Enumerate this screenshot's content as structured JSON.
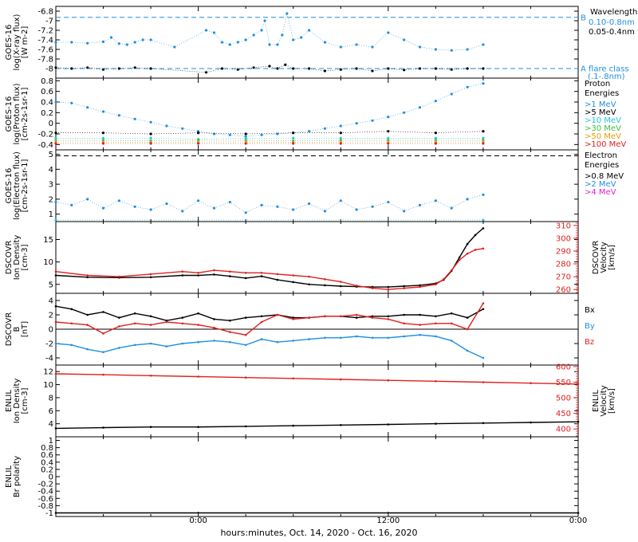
{
  "x_axis": {
    "title": "hours:minutes, Oct. 14, 2020 - Oct. 16, 2020",
    "ticks": [
      "0:00",
      "12:00",
      "0:00"
    ],
    "tick_hours": [
      0,
      12,
      24
    ],
    "range_hours": [
      -9,
      24
    ]
  },
  "chart_data": [
    {
      "type": "scatter",
      "id": "goes-xray",
      "ylabel": [
        "GOES-16",
        "log(X-ray flux)",
        "[W m-2]"
      ],
      "ylim": [
        -8.2,
        -6.7
      ],
      "yticks": [
        -6.8,
        -7.0,
        -7.2,
        -7.4,
        -7.6,
        -7.8,
        -8.0
      ],
      "ref_lines": [
        {
          "y": -6.93,
          "label": "B",
          "color": "#1f8fe0"
        },
        {
          "y": -8.0,
          "label": "A  flare class",
          "sublabel": "(.1-.8nm)",
          "color": "#1f8fe0"
        }
      ],
      "legend_title": "Wavelength",
      "legend": [
        {
          "label": "0.10-0.8nm",
          "color": "#1f8fe0"
        },
        {
          "label": "0.05-0.4nm",
          "color": "#000000"
        }
      ],
      "series": [
        {
          "name": "0.10-0.8nm",
          "color": "#1f8fe0",
          "x": [
            -9.0,
            -8.0,
            -7.0,
            -6.0,
            -5.5,
            -5.0,
            -4.5,
            -4.0,
            -3.5,
            -3.0,
            -1.5,
            0.5,
            1.0,
            1.5,
            2.0,
            2.5,
            3.0,
            3.5,
            4.0,
            4.2,
            4.5,
            5.0,
            5.3,
            5.6,
            6.0,
            6.5,
            7.0,
            8.0,
            9.0,
            10.0,
            11.0,
            12.0,
            13.0,
            14.0,
            15.0,
            16.0,
            17.0,
            18.0
          ],
          "y": [
            -7.45,
            -7.45,
            -7.47,
            -7.44,
            -7.35,
            -7.48,
            -7.5,
            -7.45,
            -7.4,
            -7.4,
            -7.55,
            -7.2,
            -7.25,
            -7.45,
            -7.5,
            -7.45,
            -7.4,
            -7.3,
            -7.2,
            -7.0,
            -7.5,
            -7.5,
            -7.3,
            -6.85,
            -7.4,
            -7.35,
            -7.2,
            -7.45,
            -7.55,
            -7.5,
            -7.55,
            -7.25,
            -7.4,
            -7.55,
            -7.6,
            -7.62,
            -7.6,
            -7.5
          ]
        },
        {
          "name": "0.05-0.4nm",
          "color": "#000000",
          "x": [
            -9.0,
            -8.0,
            -7.0,
            -6.0,
            -5.0,
            -4.0,
            -3.0,
            0.5,
            1.5,
            2.5,
            3.5,
            4.5,
            5.0,
            5.5,
            6.0,
            7.0,
            8.0,
            9.0,
            10.0,
            11.0,
            12.0,
            13.0,
            14.0,
            15.0,
            16.0,
            17.0,
            18.0
          ],
          "y": [
            -7.98,
            -8.0,
            -7.98,
            -8.02,
            -8.0,
            -7.98,
            -8.0,
            -8.08,
            -8.0,
            -8.02,
            -7.98,
            -7.95,
            -8.0,
            -7.92,
            -8.0,
            -8.0,
            -8.05,
            -8.02,
            -8.0,
            -8.05,
            -8.0,
            -8.03,
            -8.0,
            -8.0,
            -8.02,
            -8.0,
            -8.0
          ]
        }
      ]
    },
    {
      "type": "scatter",
      "id": "goes-proton",
      "ylabel": [
        "GOES-16",
        "log(Proton flux)",
        "[cm-2s-1sr-1]"
      ],
      "ylim": [
        -0.5,
        0.85
      ],
      "yticks": [
        0.8,
        0.6,
        0.4,
        0.2,
        0.0,
        -0.2,
        -0.4
      ],
      "legend_title": "Proton Energies",
      "legend": [
        {
          "label": ">1 MeV",
          "color": "#1f8fe0"
        },
        {
          "label": ">5 MeV",
          "color": "#000000"
        },
        {
          "label": ">10 MeV",
          "color": "#20c8e0"
        },
        {
          "label": ">30 MeV",
          "color": "#40c040"
        },
        {
          "label": ">50 MeV",
          "color": "#e8a000"
        },
        {
          "label": ">100 MeV",
          "color": "#e02020"
        }
      ],
      "series": [
        {
          "name": ">1 MeV",
          "color": "#1f8fe0",
          "x": [
            -9,
            -8,
            -7,
            -6,
            -5,
            -4,
            -3,
            -2,
            -1,
            0,
            1,
            2,
            3,
            4,
            5,
            6,
            7,
            8,
            9,
            10,
            11,
            12,
            13,
            14,
            15,
            16,
            17,
            18
          ],
          "y": [
            0.4,
            0.38,
            0.3,
            0.22,
            0.15,
            0.08,
            0.02,
            -0.05,
            -0.1,
            -0.15,
            -0.2,
            -0.22,
            -0.25,
            -0.22,
            -0.2,
            -0.18,
            -0.15,
            -0.1,
            -0.05,
            0.0,
            0.05,
            0.12,
            0.2,
            0.3,
            0.42,
            0.55,
            0.68,
            0.75
          ]
        },
        {
          "name": ">5 MeV",
          "color": "#000000",
          "x": [
            -9,
            -6,
            -3,
            0,
            3,
            6,
            9,
            12,
            15,
            18
          ],
          "y": [
            -0.18,
            -0.18,
            -0.2,
            -0.18,
            -0.2,
            -0.18,
            -0.18,
            -0.15,
            -0.18,
            -0.15
          ]
        },
        {
          "name": ">10 MeV",
          "color": "#20c8e0",
          "x": [
            -9,
            -6,
            -3,
            0,
            3,
            6,
            9,
            12,
            15,
            18
          ],
          "y": [
            -0.28,
            -0.28,
            -0.28,
            -0.3,
            -0.28,
            -0.28,
            -0.28,
            -0.28,
            -0.28,
            -0.28
          ]
        },
        {
          "name": ">30 MeV",
          "color": "#40c040",
          "x": [
            -9,
            -6,
            -3,
            0,
            3,
            6,
            9,
            12,
            15,
            18
          ],
          "y": [
            -0.32,
            -0.32,
            -0.33,
            -0.32,
            -0.32,
            -0.33,
            -0.32,
            -0.32,
            -0.32,
            -0.32
          ]
        },
        {
          "name": ">50 MeV",
          "color": "#e8a000",
          "x": [
            -9,
            -6,
            -3,
            0,
            3,
            6,
            9,
            12,
            15,
            18
          ],
          "y": [
            -0.35,
            -0.35,
            -0.36,
            -0.35,
            -0.35,
            -0.36,
            -0.35,
            -0.35,
            -0.35,
            -0.35
          ]
        },
        {
          "name": ">100 MeV",
          "color": "#e02020",
          "x": [
            -9,
            -6,
            -3,
            0,
            3,
            6,
            9,
            12,
            15,
            18
          ],
          "y": [
            -0.38,
            -0.38,
            -0.38,
            -0.38,
            -0.38,
            -0.38,
            -0.38,
            -0.38,
            -0.38,
            -0.38
          ]
        }
      ]
    },
    {
      "type": "scatter",
      "id": "goes-electron",
      "ylabel": [
        "GOES-16",
        "log(Electron flux)",
        "[cm-2s-1sr-1]"
      ],
      "ylim": [
        0.5,
        5.3
      ],
      "yticks": [
        5,
        4,
        3,
        2,
        1
      ],
      "ref_lines": [
        {
          "y": 4.9,
          "color": "#000000"
        }
      ],
      "legend_title": "Electron Energies",
      "legend": [
        {
          "label": ">0.8 MeV",
          "color": "#000000"
        },
        {
          "label": ">2 MeV",
          "color": "#1f8fe0"
        },
        {
          "label": ">4 MeV",
          "color": "#e020e0"
        }
      ],
      "series": [
        {
          "name": ">2 MeV",
          "color": "#1f8fe0",
          "x": [
            -9,
            -8,
            -7,
            -6,
            -5,
            -4,
            -3,
            -2,
            -1,
            0,
            1,
            2,
            3,
            4,
            5,
            6,
            7,
            8,
            9,
            10,
            11,
            12,
            13,
            14,
            15,
            16,
            17,
            18
          ],
          "y": [
            1.8,
            1.6,
            2.0,
            1.4,
            1.9,
            1.5,
            1.3,
            1.7,
            1.2,
            1.9,
            1.4,
            1.8,
            1.1,
            1.6,
            1.5,
            1.3,
            1.7,
            1.2,
            1.9,
            1.3,
            1.5,
            1.8,
            1.2,
            1.6,
            1.9,
            1.4,
            2.0,
            2.3
          ]
        },
        {
          "name": ">0.8 MeV floor",
          "color": "#20c8e0",
          "x": [
            -9,
            18
          ],
          "y": [
            0.6,
            0.6
          ]
        }
      ]
    },
    {
      "type": "line",
      "id": "dscovr-plasma",
      "ylabel": [
        "DSCOVR",
        "Ion Density",
        "[cm-3]"
      ],
      "ylim": [
        3,
        19
      ],
      "yticks": [
        5,
        10,
        15
      ],
      "right_ylabel": [
        "DSCOVR",
        "Velocity",
        "[km/s]"
      ],
      "right_ylim": [
        257,
        313
      ],
      "right_yticks": [
        260,
        270,
        280,
        290,
        300,
        310
      ],
      "series": [
        {
          "name": "Ion Density",
          "axis": "left",
          "color": "#000000",
          "x": [
            -9,
            -7,
            -5,
            -3,
            -1,
            0,
            1,
            2,
            3,
            4,
            5,
            6,
            7,
            8,
            9,
            10,
            11,
            12,
            13,
            14,
            15,
            15.5,
            16,
            16.5,
            17,
            17.5,
            18
          ],
          "y": [
            7.0,
            6.6,
            6.5,
            6.6,
            7.0,
            7.0,
            7.2,
            6.8,
            6.4,
            6.8,
            6.0,
            5.5,
            5.0,
            4.8,
            4.6,
            4.5,
            4.4,
            4.4,
            4.6,
            4.8,
            5.2,
            6.0,
            8.0,
            11.0,
            14.0,
            16.0,
            17.5
          ]
        },
        {
          "name": "Velocity",
          "axis": "right",
          "color": "#e02020",
          "x": [
            -9,
            -7,
            -5,
            -3,
            -1,
            0,
            1,
            2,
            3,
            4,
            5,
            6,
            7,
            8,
            9,
            10,
            11,
            12,
            13,
            14,
            15,
            15.5,
            16,
            16.5,
            17,
            17.5,
            18
          ],
          "y": [
            274,
            271,
            270,
            272,
            274,
            273,
            275,
            274,
            273,
            273,
            272,
            271,
            270,
            268,
            266,
            263,
            261,
            260,
            261,
            262,
            264,
            268,
            275,
            283,
            288,
            291,
            292
          ]
        }
      ]
    },
    {
      "type": "line",
      "id": "dscovr-mag",
      "ylabel": [
        "DSCOVR",
        "B",
        "[nT]"
      ],
      "ylim": [
        -5,
        5
      ],
      "yticks": [
        4,
        2,
        0,
        -2,
        -4
      ],
      "zero_line": true,
      "legend": [
        {
          "label": "Bx",
          "color": "#000000"
        },
        {
          "label": "By",
          "color": "#1f8fe0"
        },
        {
          "label": "Bz",
          "color": "#e02020"
        }
      ],
      "series": [
        {
          "name": "Bx",
          "color": "#000000",
          "x": [
            -9,
            -8,
            -7,
            -6,
            -5,
            -4,
            -3,
            -2,
            -1,
            0,
            1,
            2,
            3,
            4,
            5,
            6,
            7,
            8,
            9,
            10,
            11,
            12,
            13,
            14,
            15,
            16,
            17,
            18
          ],
          "y": [
            3.2,
            2.8,
            2.0,
            2.4,
            1.6,
            2.2,
            1.8,
            1.2,
            1.6,
            2.2,
            1.4,
            1.2,
            1.6,
            1.8,
            2.0,
            1.6,
            1.6,
            1.8,
            1.8,
            1.6,
            1.8,
            1.8,
            2.0,
            2.0,
            1.8,
            2.2,
            1.6,
            2.8
          ]
        },
        {
          "name": "By",
          "color": "#1f8fe0",
          "x": [
            -9,
            -8,
            -7,
            -6,
            -5,
            -4,
            -3,
            -2,
            -1,
            0,
            1,
            2,
            3,
            4,
            5,
            6,
            7,
            8,
            9,
            10,
            11,
            12,
            13,
            14,
            15,
            16,
            17,
            18
          ],
          "y": [
            -2.0,
            -2.2,
            -2.8,
            -3.2,
            -2.6,
            -2.2,
            -2.0,
            -2.4,
            -2.0,
            -1.8,
            -1.6,
            -1.8,
            -2.2,
            -1.4,
            -1.8,
            -1.6,
            -1.4,
            -1.2,
            -1.2,
            -1.0,
            -1.2,
            -1.2,
            -1.0,
            -0.8,
            -1.0,
            -1.6,
            -3.0,
            -4.0
          ]
        },
        {
          "name": "Bz",
          "color": "#e02020",
          "x": [
            -9,
            -8,
            -7,
            -6,
            -5,
            -4,
            -3,
            -2,
            -1,
            0,
            1,
            2,
            3,
            4,
            5,
            6,
            7,
            8,
            9,
            10,
            11,
            12,
            13,
            14,
            15,
            16,
            17,
            18
          ],
          "y": [
            1.0,
            0.8,
            0.6,
            -0.6,
            0.4,
            0.8,
            0.6,
            1.0,
            0.8,
            0.6,
            0.2,
            -0.4,
            -0.8,
            1.0,
            2.0,
            1.4,
            1.6,
            1.8,
            1.8,
            2.0,
            1.6,
            1.4,
            0.8,
            0.6,
            0.8,
            0.8,
            0.0,
            3.6
          ]
        }
      ]
    },
    {
      "type": "line",
      "id": "enlil-plasma",
      "ylabel": [
        "ENLIL",
        "Ion Density",
        "[cm-3]"
      ],
      "ylim": [
        2,
        13
      ],
      "yticks": [
        12,
        10,
        8,
        6,
        4
      ],
      "right_ylabel": [
        "ENLIL",
        "Velocity",
        "[km/s]"
      ],
      "right_ylim": [
        375,
        605
      ],
      "right_yticks": [
        400,
        450,
        500,
        550,
        600
      ],
      "series": [
        {
          "name": "Ion Density",
          "axis": "left",
          "color": "#000000",
          "x": [
            -9,
            -6,
            -3,
            0,
            3,
            6,
            9,
            12,
            15,
            18,
            21,
            24
          ],
          "y": [
            3.3,
            3.4,
            3.5,
            3.5,
            3.6,
            3.7,
            3.8,
            3.9,
            4.0,
            4.1,
            4.2,
            4.3
          ]
        },
        {
          "name": "Velocity",
          "axis": "right",
          "color": "#e02020",
          "x": [
            -9,
            -6,
            -3,
            0,
            3,
            6,
            9,
            12,
            15,
            18,
            21,
            24
          ],
          "y": [
            577,
            574,
            571,
            568,
            565,
            562,
            559,
            556,
            553,
            550,
            547,
            544
          ]
        }
      ]
    },
    {
      "type": "line",
      "id": "enlil-polarity",
      "ylabel": [
        "ENLIL",
        "Br polarity"
      ],
      "ylim": [
        -1.1,
        1.1
      ],
      "yticks": [
        1.0,
        0.8,
        0.6,
        0.4,
        0.2,
        0.0,
        -0.2,
        -0.4,
        -0.6,
        -0.8,
        -1.0
      ],
      "series": [
        {
          "name": "Br polarity",
          "color": "#000000",
          "x": [
            -9,
            24
          ],
          "y": [
            -1.0,
            -1.0
          ]
        }
      ]
    }
  ]
}
